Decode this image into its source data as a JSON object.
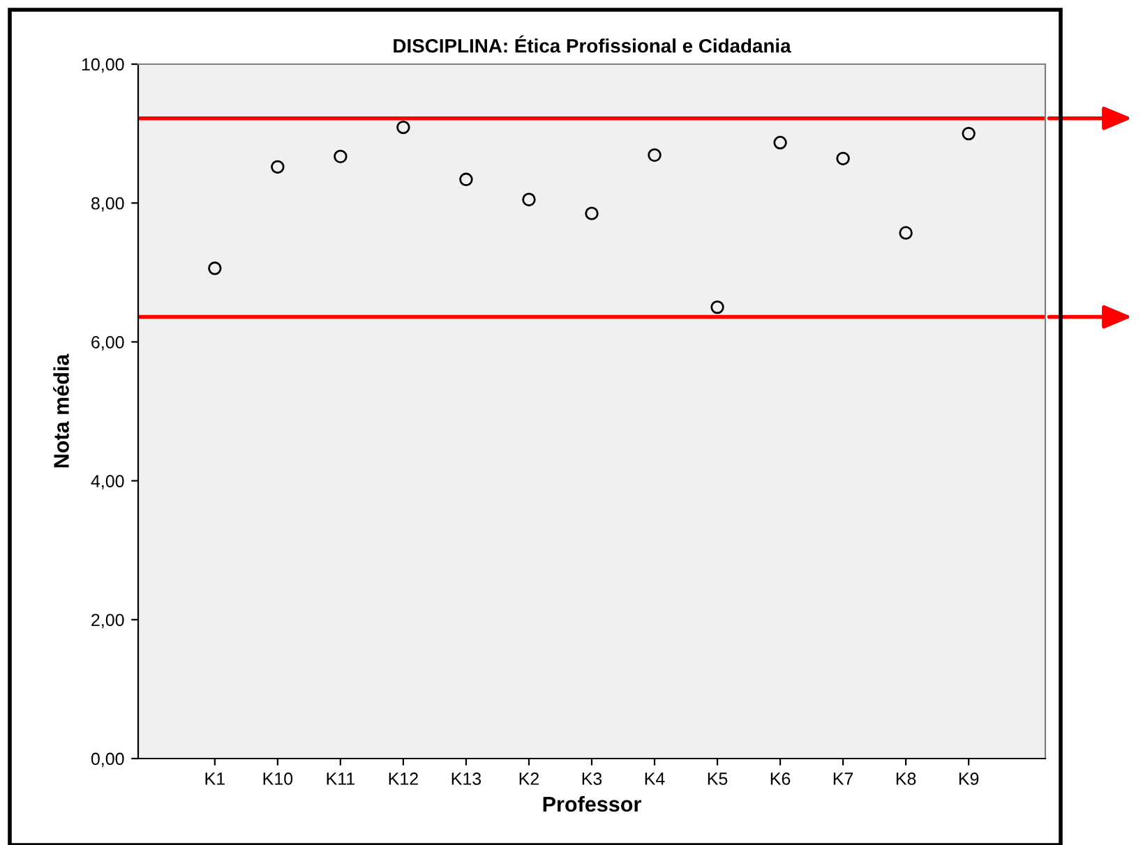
{
  "chart_data": {
    "type": "scatter",
    "title": "DISCIPLINA: Ética Profissional e Cidadania",
    "xlabel": "Professor",
    "ylabel": "Nota média",
    "categories": [
      "K1",
      "K10",
      "K11",
      "K12",
      "K13",
      "K2",
      "K3",
      "K4",
      "K5",
      "K6",
      "K7",
      "K8",
      "K9"
    ],
    "series": [
      {
        "color": "#000000",
        "values": [
          7.06,
          8.52,
          8.67,
          9.09,
          8.34,
          8.05,
          7.85,
          8.69,
          6.5,
          8.87,
          8.64,
          7.57,
          9.0
        ]
      }
    ],
    "ylim": [
      0,
      10
    ],
    "yticks": [
      {
        "value": 0,
        "label": "0,00"
      },
      {
        "value": 2,
        "label": "2,00"
      },
      {
        "value": 4,
        "label": "4,00"
      },
      {
        "value": 6,
        "label": "6,00"
      },
      {
        "value": 8,
        "label": "8,00"
      },
      {
        "value": 10,
        "label": "10,00"
      }
    ],
    "ref_lines": [
      {
        "axis": "y",
        "value": 9.22,
        "color": "#ff0000"
      },
      {
        "axis": "y",
        "value": 6.36,
        "color": "#ff0000"
      }
    ],
    "marker": "circle",
    "grid": false,
    "legend": false
  }
}
